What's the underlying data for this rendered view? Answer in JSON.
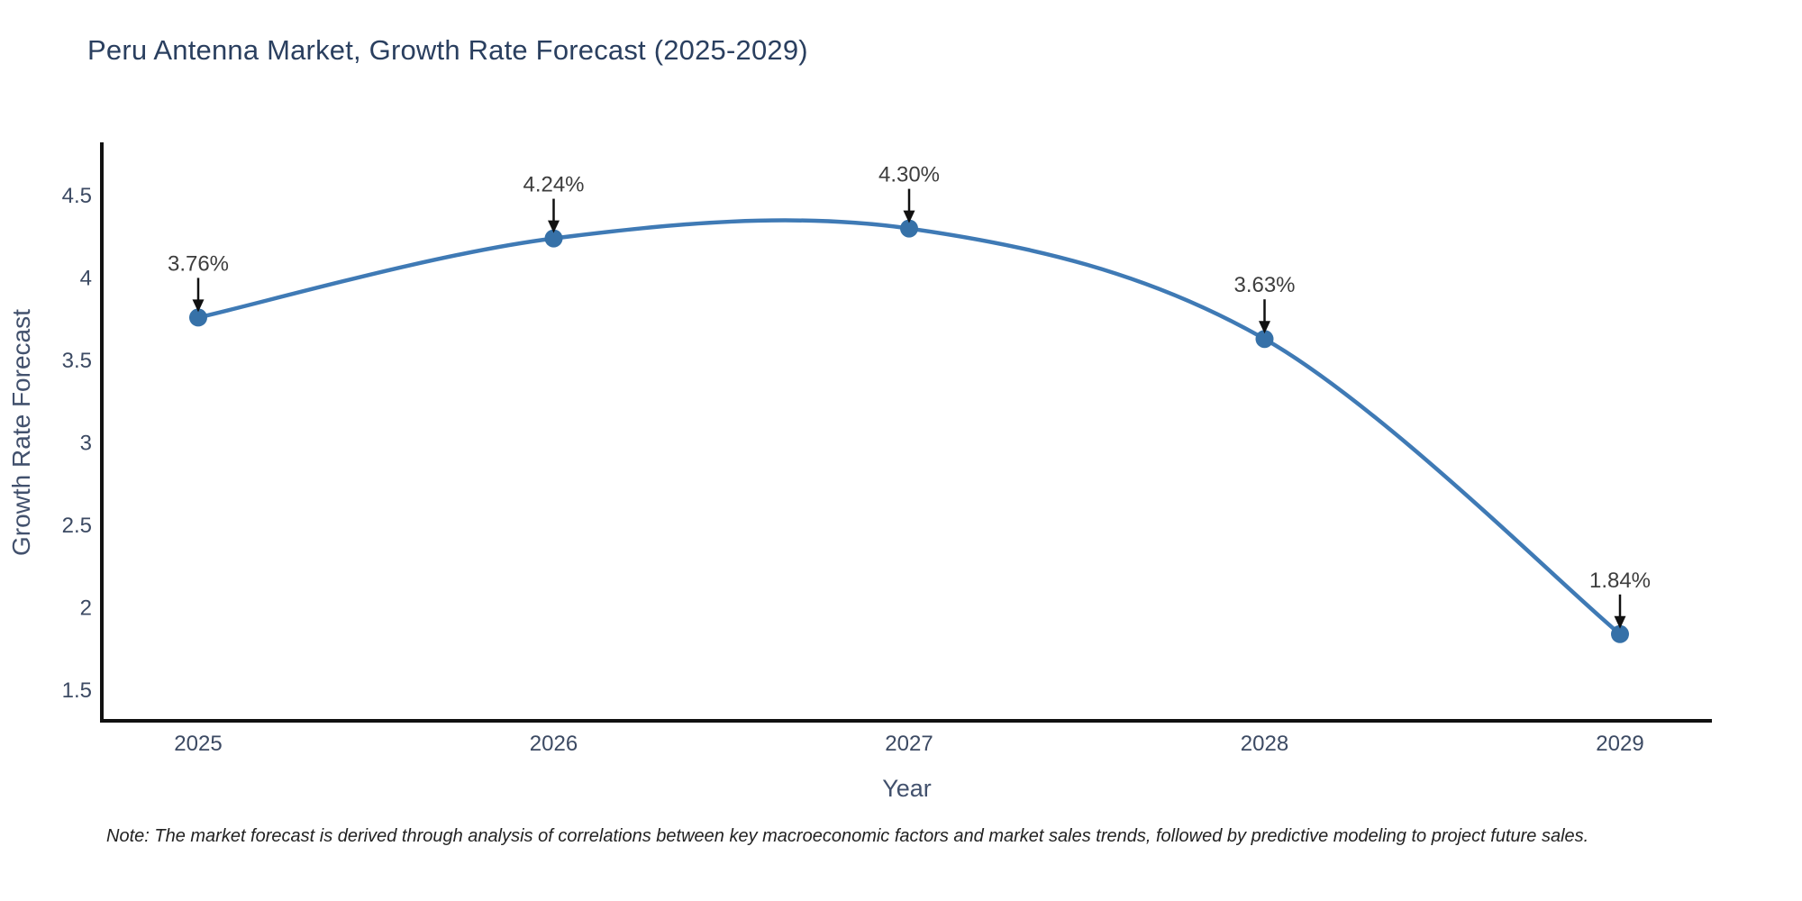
{
  "title": "Peru Antenna Market, Growth Rate Forecast (2025-2029)",
  "note": "Note: The market forecast is derived through analysis of correlations between key macroeconomic factors and market sales trends, followed by predictive modeling to project future sales.",
  "chart_data": {
    "type": "line",
    "title": "Peru Antenna Market, Growth Rate Forecast (2025-2029)",
    "xlabel": "Year",
    "ylabel": "Growth Rate Forecast",
    "line_shape": "spline",
    "grid": false,
    "legend": "none",
    "x": [
      2025,
      2026,
      2027,
      2028,
      2029
    ],
    "values": [
      3.76,
      4.24,
      4.3,
      3.63,
      1.84
    ],
    "point_labels": [
      "3.76%",
      "4.24%",
      "4.30%",
      "3.63%",
      "1.84%"
    ],
    "x_tick_labels": [
      "2025",
      "2026",
      "2027",
      "2028",
      "2029"
    ],
    "y_tick_values": [
      1.5,
      2,
      2.5,
      3,
      3.5,
      4,
      4.5
    ],
    "y_tick_labels": [
      "1.5",
      "2",
      "2.5",
      "3",
      "3.5",
      "4",
      "4.5"
    ],
    "xlim": [
      2024.73,
      2029.26
    ],
    "ylim": [
      1.31,
      4.81
    ],
    "annotations_have_arrows": true
  },
  "colors": {
    "line": "#3f7ab5",
    "marker": "#3671a8",
    "axis": "#111111",
    "title_text": "#2a3f5f",
    "axis_title_text": "#42516d",
    "tick_text": "#3c4a63",
    "annotation_text": "#3d3d3d",
    "arrow": "#111111",
    "background": "#ffffff"
  }
}
